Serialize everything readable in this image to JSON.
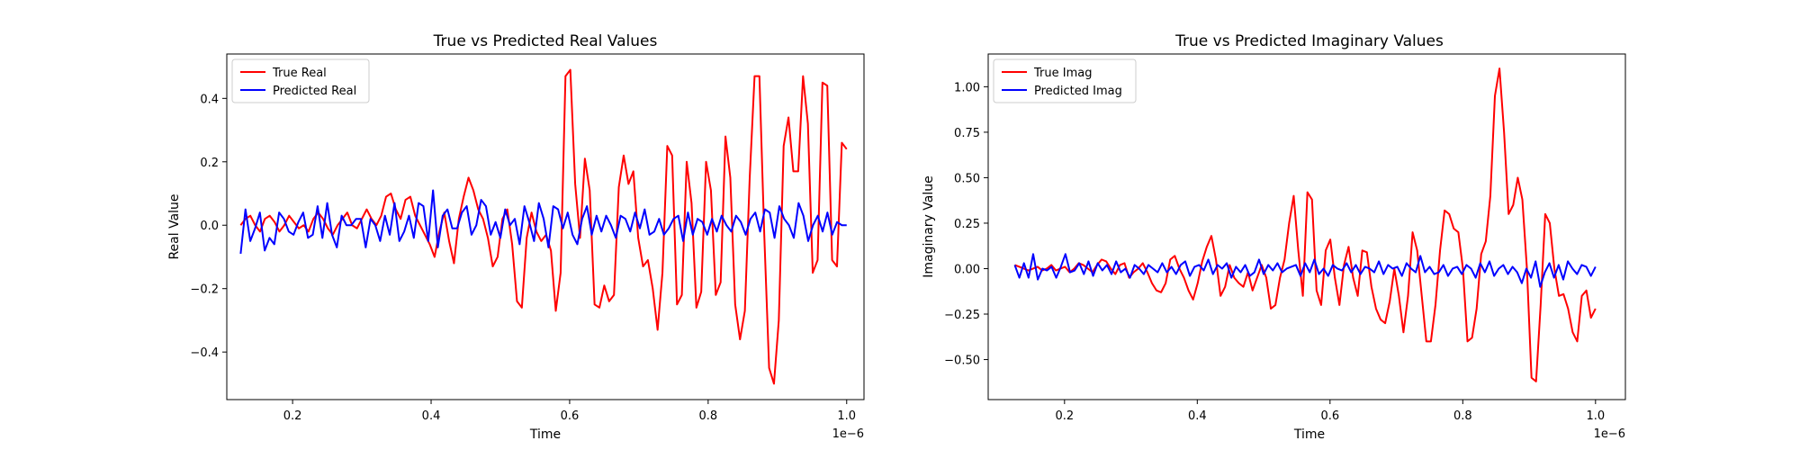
{
  "chart_data": [
    {
      "type": "line",
      "title": "True vs Predicted Real Values",
      "xlabel": "Time",
      "ylabel": "Real Value",
      "x_offset_text": "1e−6",
      "xlim": [
        0.105,
        1.025
      ],
      "ylim": [
        -0.55,
        0.54
      ],
      "xticks": [
        0.2,
        0.4,
        0.6,
        0.8,
        1.0
      ],
      "xtick_labels": [
        "0.2",
        "0.4",
        "0.6",
        "0.8",
        "1.0"
      ],
      "yticks": [
        -0.4,
        -0.2,
        0.0,
        0.2,
        0.4
      ],
      "ytick_labels": [
        "−0.4",
        "−0.2",
        "0.0",
        "0.2",
        "0.4"
      ],
      "grid": false,
      "legend": "top-left",
      "x_start": 0.125,
      "x_end": 1.0,
      "series": [
        {
          "name": "True Real",
          "color": "#ff0000",
          "values": [
            0.0,
            0.02,
            0.03,
            0.0,
            -0.02,
            0.02,
            0.03,
            0.01,
            -0.02,
            0.0,
            0.03,
            0.01,
            -0.01,
            0.0,
            -0.02,
            0.02,
            0.04,
            0.02,
            -0.01,
            -0.03,
            0.0,
            0.02,
            0.04,
            0.0,
            -0.01,
            0.02,
            0.05,
            0.02,
            0.0,
            0.03,
            0.09,
            0.1,
            0.05,
            0.02,
            0.08,
            0.09,
            0.03,
            0.0,
            -0.03,
            -0.06,
            -0.1,
            -0.02,
            0.04,
            -0.05,
            -0.12,
            0.02,
            0.09,
            0.15,
            0.11,
            0.05,
            0.02,
            -0.04,
            -0.13,
            -0.1,
            0.02,
            0.05,
            -0.06,
            -0.24,
            -0.26,
            -0.04,
            0.04,
            -0.02,
            -0.05,
            -0.03,
            -0.08,
            -0.27,
            -0.15,
            0.47,
            0.49,
            0.13,
            -0.04,
            0.21,
            0.11,
            -0.25,
            -0.26,
            -0.19,
            -0.24,
            -0.22,
            0.12,
            0.22,
            0.13,
            0.17,
            -0.04,
            -0.13,
            -0.11,
            -0.2,
            -0.33,
            -0.15,
            0.25,
            0.22,
            -0.25,
            -0.22,
            0.2,
            0.07,
            -0.26,
            -0.21,
            0.2,
            0.11,
            -0.22,
            -0.18,
            0.28,
            0.15,
            -0.25,
            -0.36,
            -0.27,
            0.15,
            0.47,
            0.47,
            -0.03,
            -0.45,
            -0.5,
            -0.3,
            0.25,
            0.34,
            0.17,
            0.17,
            0.47,
            0.32,
            -0.15,
            -0.11,
            0.45,
            0.44,
            -0.11,
            -0.13,
            0.26,
            0.24
          ]
        },
        {
          "name": "Predicted Real",
          "color": "#0000ff",
          "values": [
            -0.09,
            0.05,
            -0.05,
            -0.01,
            0.04,
            -0.08,
            -0.04,
            -0.06,
            0.04,
            0.02,
            -0.02,
            -0.03,
            0.01,
            0.04,
            -0.04,
            -0.03,
            0.06,
            -0.04,
            0.07,
            -0.03,
            -0.07,
            0.03,
            0.0,
            0.0,
            0.02,
            0.02,
            -0.07,
            0.02,
            0.0,
            -0.05,
            0.03,
            -0.03,
            0.07,
            -0.05,
            -0.02,
            0.03,
            -0.04,
            0.07,
            0.06,
            -0.05,
            0.11,
            -0.07,
            0.03,
            0.05,
            -0.01,
            -0.01,
            0.04,
            0.06,
            -0.03,
            0.0,
            0.08,
            0.06,
            -0.03,
            0.01,
            -0.04,
            0.05,
            0.0,
            0.02,
            -0.06,
            0.06,
            0.01,
            -0.05,
            0.07,
            0.02,
            -0.07,
            0.06,
            0.05,
            -0.01,
            0.04,
            -0.03,
            -0.06,
            0.02,
            0.06,
            -0.03,
            0.03,
            -0.02,
            0.03,
            0.0,
            -0.04,
            0.03,
            0.02,
            -0.02,
            0.04,
            -0.01,
            0.05,
            -0.03,
            -0.02,
            0.02,
            -0.03,
            -0.01,
            0.02,
            0.03,
            -0.05,
            0.04,
            -0.03,
            0.02,
            0.01,
            -0.03,
            0.02,
            -0.02,
            0.03,
            0.0,
            -0.02,
            0.03,
            0.01,
            -0.03,
            0.02,
            0.04,
            -0.02,
            0.05,
            0.04,
            -0.04,
            0.06,
            0.02,
            0.0,
            -0.04,
            0.07,
            0.03,
            -0.05,
            0.0,
            0.03,
            -0.02,
            0.04,
            -0.03,
            0.01,
            0.0,
            0.0
          ]
        }
      ]
    },
    {
      "type": "line",
      "title": "True vs Predicted Imaginary Values",
      "xlabel": "Time",
      "ylabel": "Imaginary Value",
      "x_offset_text": "1e−6",
      "xlim": [
        0.085,
        1.045
      ],
      "ylim": [
        -0.72,
        1.18
      ],
      "xticks": [
        0.2,
        0.4,
        0.6,
        0.8,
        1.0
      ],
      "xtick_labels": [
        "0.2",
        "0.4",
        "0.6",
        "0.8",
        "1.0"
      ],
      "yticks": [
        -0.5,
        -0.25,
        0.0,
        0.25,
        0.5,
        0.75,
        1.0
      ],
      "ytick_labels": [
        "−0.50",
        "−0.25",
        "0.00",
        "0.25",
        "0.50",
        "0.75",
        "1.00"
      ],
      "grid": false,
      "legend": "top-left",
      "x_start": 0.125,
      "x_end": 1.0,
      "series": [
        {
          "name": "True Imag",
          "color": "#ff0000",
          "values": [
            0.02,
            0.01,
            0.0,
            -0.01,
            0.0,
            0.01,
            -0.01,
            0.0,
            0.02,
            -0.01,
            0.0,
            0.01,
            -0.02,
            0.0,
            0.03,
            0.02,
            0.0,
            -0.02,
            0.02,
            0.05,
            0.04,
            0.0,
            -0.03,
            0.02,
            0.03,
            -0.05,
            -0.02,
            0.0,
            0.03,
            -0.02,
            -0.08,
            -0.12,
            -0.13,
            -0.08,
            0.05,
            0.07,
            0.0,
            -0.05,
            -0.12,
            -0.17,
            -0.08,
            0.04,
            0.12,
            0.18,
            0.05,
            -0.15,
            -0.1,
            0.02,
            -0.05,
            -0.08,
            -0.1,
            -0.02,
            -0.12,
            -0.05,
            0.02,
            -0.05,
            -0.22,
            -0.2,
            -0.05,
            0.05,
            0.25,
            0.4,
            0.1,
            -0.15,
            0.42,
            0.38,
            -0.12,
            -0.2,
            0.1,
            0.16,
            -0.05,
            -0.2,
            0.02,
            0.12,
            -0.05,
            -0.15,
            0.1,
            0.09,
            -0.1,
            -0.22,
            -0.28,
            -0.3,
            -0.18,
            0.0,
            -0.15,
            -0.35,
            -0.15,
            0.2,
            0.1,
            -0.15,
            -0.4,
            -0.4,
            -0.2,
            0.1,
            0.32,
            0.3,
            0.22,
            0.2,
            0.0,
            -0.4,
            -0.38,
            -0.22,
            0.08,
            0.15,
            0.4,
            0.95,
            1.1,
            0.75,
            0.3,
            0.35,
            0.5,
            0.38,
            0.0,
            -0.6,
            -0.62,
            -0.2,
            0.3,
            0.25,
            0.0,
            -0.15,
            -0.14,
            -0.22,
            -0.35,
            -0.4,
            -0.15,
            -0.12,
            -0.27,
            -0.22
          ]
        },
        {
          "name": "Predicted Imag",
          "color": "#0000ff",
          "values": [
            0.02,
            -0.05,
            0.03,
            -0.05,
            0.08,
            -0.06,
            0.0,
            -0.01,
            0.01,
            -0.05,
            0.01,
            0.08,
            -0.02,
            -0.01,
            0.03,
            -0.03,
            0.04,
            -0.04,
            0.03,
            -0.01,
            0.02,
            -0.03,
            0.04,
            -0.02,
            0.0,
            -0.05,
            0.02,
            0.0,
            -0.03,
            0.02,
            0.0,
            -0.02,
            0.03,
            -0.02,
            0.01,
            -0.03,
            0.02,
            0.04,
            -0.04,
            0.01,
            0.02,
            -0.01,
            0.05,
            -0.03,
            0.02,
            0.0,
            0.03,
            -0.05,
            0.01,
            -0.02,
            0.02,
            -0.04,
            -0.02,
            0.05,
            -0.03,
            0.02,
            -0.01,
            0.03,
            -0.02,
            0.0,
            0.01,
            0.02,
            -0.04,
            0.03,
            -0.02,
            0.05,
            -0.03,
            0.0,
            -0.04,
            0.02,
            0.0,
            -0.01,
            0.03,
            -0.02,
            0.02,
            -0.03,
            0.01,
            0.0,
            -0.02,
            0.04,
            -0.03,
            0.02,
            0.0,
            0.01,
            -0.04,
            0.03,
            0.0,
            -0.02,
            0.07,
            -0.02,
            0.01,
            -0.03,
            -0.02,
            0.02,
            -0.04,
            0.0,
            0.01,
            -0.03,
            0.02,
            0.0,
            -0.05,
            0.03,
            -0.02,
            0.04,
            -0.04,
            0.0,
            0.02,
            -0.03,
            0.01,
            -0.02,
            -0.08,
            0.0,
            -0.05,
            0.04,
            -0.1,
            -0.02,
            0.03,
            -0.05,
            0.02,
            -0.06,
            0.04,
            0.0,
            -0.03,
            0.02,
            0.01,
            -0.04,
            0.01
          ]
        }
      ]
    }
  ]
}
